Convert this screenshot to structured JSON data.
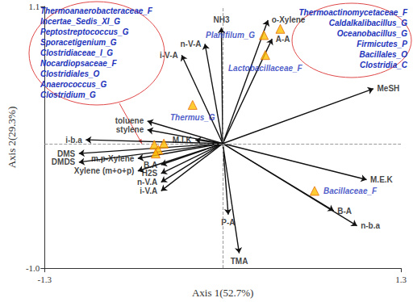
{
  "chart_data": {
    "type": "biplot",
    "xlabel": "Axis 1(52.7%)",
    "ylabel": "Axis 2(29.3%)",
    "xlim": [
      -1.3,
      1.3
    ],
    "ylim": [
      -1,
      1.1
    ],
    "xticks": [
      -1.3,
      1.3
    ],
    "yticks": [
      {
        "value": -1,
        "label": "-1.0"
      },
      1.1
    ],
    "grid": false,
    "vectors": [
      {
        "label": "NH3",
        "x": -0.01,
        "y": 0.93
      },
      {
        "label": "n-V-A",
        "x": -0.13,
        "y": 0.8
      },
      {
        "label": "i-V-A",
        "x": -0.3,
        "y": 0.71
      },
      {
        "label": "o-Xylene",
        "x": 0.33,
        "y": 0.99
      },
      {
        "label": "A-A",
        "x": 0.36,
        "y": 0.84
      },
      {
        "label": "MeSH",
        "x": 1.1,
        "y": 0.44
      },
      {
        "label": "M.E.K",
        "x": 1.05,
        "y": -0.29
      },
      {
        "label": "B-A",
        "x": 0.81,
        "y": -0.54
      },
      {
        "label": "n-b.a",
        "x": 0.98,
        "y": -0.66
      },
      {
        "label": "P-A",
        "x": 0.04,
        "y": -0.57
      },
      {
        "label": "TMA",
        "x": 0.12,
        "y": -0.88
      },
      {
        "label": "M.I.K",
        "x": -0.2,
        "y": 0.03
      },
      {
        "label": "toluene",
        "x": -0.55,
        "y": 0.18
      },
      {
        "label": "stylene",
        "x": -0.55,
        "y": 0.11
      },
      {
        "label": "i-b.a",
        "x": -1.0,
        "y": 0.03
      },
      {
        "label": "DMS",
        "x": -1.05,
        "y": -0.08
      },
      {
        "label": "DMDS",
        "x": -1.05,
        "y": -0.15
      },
      {
        "label": "m.p-Xylene",
        "x": -0.62,
        "y": -0.12
      },
      {
        "label": "Xylene (m+o+p)",
        "x": -0.62,
        "y": -0.22
      },
      {
        "label": "B.A",
        "x": -0.45,
        "y": -0.17
      },
      {
        "label": "H2S",
        "x": -0.45,
        "y": -0.24
      },
      {
        "label": "n-V.A",
        "x": -0.45,
        "y": -0.31
      },
      {
        "label": "i-V.A",
        "x": -0.45,
        "y": -0.38
      }
    ],
    "points": [
      {
        "label": "Thermus_G",
        "x": -0.22,
        "y": 0.31
      },
      {
        "label": "Planifilum_G",
        "x": 0.3,
        "y": 0.87
      },
      {
        "label": "Lactobacillaceae_F",
        "x": 0.31,
        "y": 0.71
      },
      {
        "label": "Bacillaceae_F",
        "x": 0.67,
        "y": -0.38
      }
    ],
    "groups": [
      {
        "members": [
          "Thermoanaerobacteraceae_F",
          "Incertae_Sedis_XI_G",
          "Peptostreptococcus_G",
          "Sporacetigenium_G",
          "Clostridiaceae_I_G",
          "Nocardiopsaceae_F",
          "Clostridiales_O",
          "Anaerococcus_G",
          "Clostridium_G"
        ],
        "x": [
          -0.5,
          -0.47,
          -0.43,
          -0.49
        ],
        "y": [
          -0.01,
          -0.05,
          0.0,
          -0.08
        ]
      },
      {
        "members": [
          "Thermoactinomycetaceae_F",
          "Caldalkalibacillus_G",
          "Oceanobacillus_G",
          "Firmicutes_P",
          "Bacillales_O",
          "Clostridia_C"
        ],
        "x": [
          0.42
        ],
        "y": [
          0.92
        ]
      }
    ]
  }
}
